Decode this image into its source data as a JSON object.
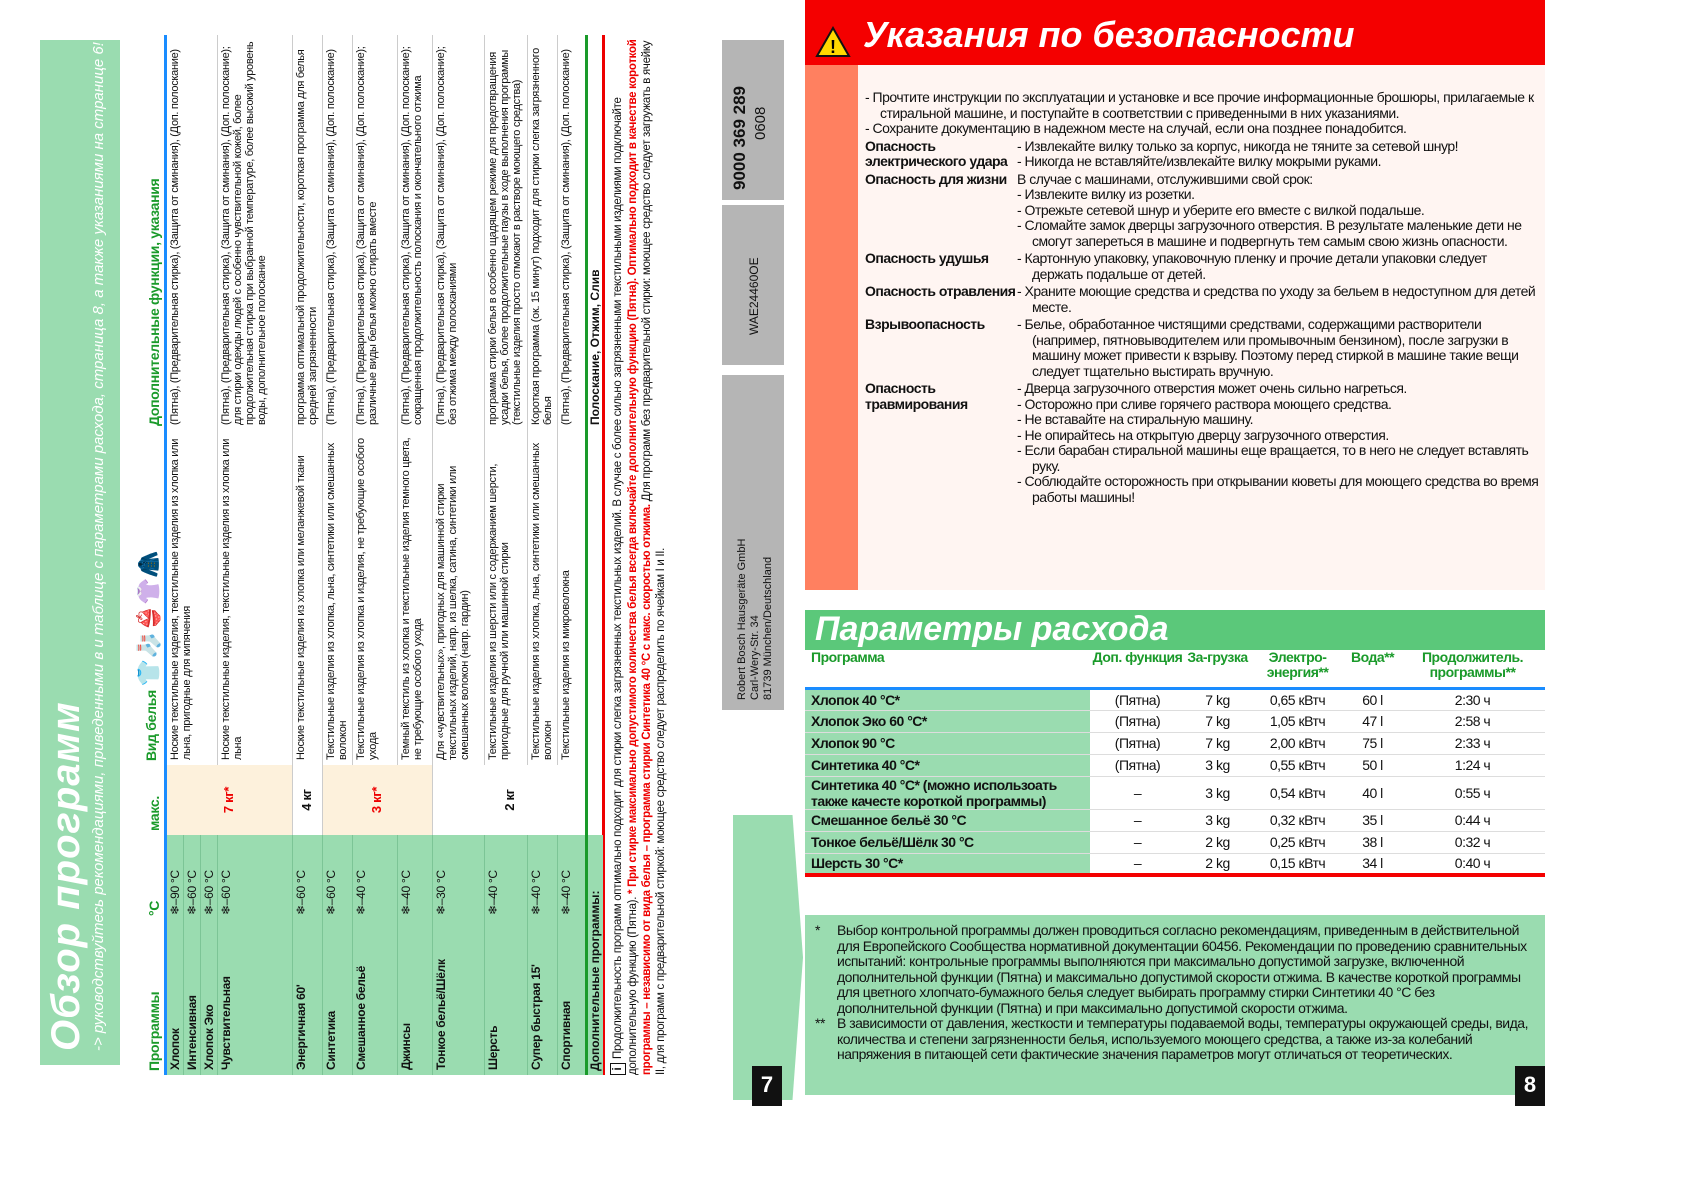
{
  "left_page": {
    "title": "Обзор программ",
    "subtitle": "-> руководствуйтесь рекомендациями, приведенными в и таблице с параметрами расхода, страница 8, а также указаниями на странице 6!",
    "headers": {
      "program": "Программы",
      "temp": "°C",
      "max": "макс.",
      "type": "Вид белья",
      "extra": "Дополнительные функции, указания"
    },
    "laundry_icons": [
      "shirt-icon",
      "sock-icon",
      "underwear-icon",
      "tshirt-icon",
      "suit-icon"
    ],
    "max_loads": {
      "a": "7 кг*",
      "b": "4 кг",
      "c": "3 кг*",
      "d": "2 кг"
    },
    "programs": [
      {
        "name": "Хлопок",
        "temp": "❄–90 °C"
      },
      {
        "name": "Интенсивная",
        "temp": "❄–60 °C"
      },
      {
        "name": "Хлопок Эко",
        "temp": "❄–60 °C"
      },
      {
        "name": "Чувствительная",
        "temp": "❄–60 °C"
      },
      {
        "name": "Энергичная 60'",
        "temp": "❄–60 °C"
      },
      {
        "name": "Синтетика",
        "temp": "❄–60 °C"
      },
      {
        "name": "Смешанное бельё",
        "temp": "❄–40 °C"
      },
      {
        "name": "Джинсы",
        "temp": "❄–40 °C"
      },
      {
        "name": "Тонкое бельё/Шёлк",
        "temp": "❄–30 °C"
      },
      {
        "name": "Шерсть",
        "temp": "❄–40 °C"
      },
      {
        "name": "Супер быстрая 15'",
        "temp": "❄–40 °C"
      },
      {
        "name": "Спортивная",
        "temp": "❄–40 °C"
      }
    ],
    "descriptions": [
      "Ноские текстильные изделия, текстильные изделия из хлопка или льна, пригодные для кипячения",
      "Ноские текстильные изделия, текстильные изделия из хлопка или льна",
      "Ноские текстильные изделия из хлопка или меланжевой ткани",
      "Текстильные изделия из хлопка, льна, синтетики или смешанных волокон",
      "Текстильные изделия из хлопка и изделия, не требующие особого ухода",
      "Темный текстиль из хлопка и текстильные изделия темного цвета, не требующие особого ухода",
      "Для «чувствительных», пригодных для машинной стирки текстильных изделий, напр. из шелка, сатина, синтетики или смешанных волокон (напр. гардин)",
      "Текстильные изделия из шерсти или с содержанием шерсти, пригодные для ручной или машинной стирки",
      "Текстильные изделия из хлопка, льна, синтетики или смешанных волокон",
      "Текстильные изделия из микроволокна"
    ],
    "extras": [
      "(Пятна), (Предварительная стирка), (Защита от сминания), (Доп. полоскание)",
      "(Пятна), (Предварительная стирка), (Защита от сминания), (Доп. полоскание); для стирки одежды людей с особенно чувствительной кожей, более продолжительная стирка при выбранной температуре, более высокий уровень воды, дополнительное полоскание",
      "программа оптимальной продолжительности, короткая программа для белья средней загрязненности",
      "(Пятна), (Предварительная стирка), (Защита от сминания), (Доп. полоскание)",
      "(Пятна), (Предварительная стирка), (Защита от сминания), (Доп. полоскание); различные виды белья можно стирать вместе",
      "(Пятна), (Предварительная стирка), (Защита от сминания), (Доп. полоскание); сокращенная продолжительность полоскания и окончательного отжима",
      "(Пятна), (Предварительная стирка), (Защита от сминания), (Доп. полоскание); без отжима между полосканиями",
      "программа стирки белья в особенно щадящем режиме для предотвращения усадки белья, более продолжительные паузы в ходе выполнения программы (текстильные изделия просто отмокают в растворе моющего средства)",
      "Короткая программа (ок. 15 минут) подходит для стирки слегка загрязненного белья",
      "(Пятна), (Предварительная стирка), (Защита от сминания), (Доп. полоскание)"
    ],
    "additional_label": "Дополнительные программы:",
    "additional_items": "Полоскание, Отжим, Слив",
    "note_1": "Продолжительность программ оптимально подходит для стирки слегка загрязненных текстильных изделий. В случае с более сильно загрязненными текстильными изделиями подключайте дополнительную функцию (Пятна).",
    "note_red": "* При стирке максимально допустимого количества белья всегда включайте дополнительную функцию (Пятна). Оптимально подходит в качестве короткой программы – независимо от вида белья – программа стирки Синтетика 40 °C с макс. скоростью отжима.",
    "note_2": "Для программ без предварительной стирки: моющее средство следует загружать в ячейку II, для программ с предварительной стиркой: моющее средство следует распределить по ячейкам I и II.",
    "page_number": "7"
  },
  "spine": {
    "code": "9000 369 289",
    "date": "0608",
    "model": "WAE24460OE",
    "company": "Robert Bosch Hausgeräte GmbH",
    "street": "Carl-Wery-Str. 34",
    "city": "81739 München/Deutschland"
  },
  "right_page": {
    "safety_title": "Указания по безопасности",
    "intro": [
      "- Прочтите инструкции по эксплуатации и установке и все прочие информационные брошюры, прилагаемые к стиральной машине, и поступайте в соответствии с приведенными в них указаниями.",
      "- Сохраните документацию в надежном месте на случай, если она позднее понадобится."
    ],
    "sections": [
      {
        "label": "Опасность электрического удара",
        "lead": "",
        "items": [
          "- Извлекайте вилку только за корпус, никогда не тяните за сетевой шнур!",
          "- Никогда не вставляйте/извлекайте вилку мокрыми руками."
        ]
      },
      {
        "label": "Опасность для жизни",
        "lead": "В случае с машинами, отслужившими свой срок:",
        "items": [
          "- Извлеките вилку из розетки.",
          "- Отрежьте сетевой шнур и уберите его вместе с вилкой подальше.",
          "- Сломайте замок дверцы загрузочного отверстия. В результате маленькие дети не смогут запереться в машине и подвергнуть тем самым свою жизнь опасности."
        ]
      },
      {
        "label": "Опасность удушья",
        "lead": "",
        "items": [
          "- Картонную упаковку, упаковочную пленку и прочие детали упаковки следует держать подальше от детей."
        ]
      },
      {
        "label": "Опасность отравления",
        "lead": "",
        "items": [
          "- Храните моющие средства и средства по уходу за бельем в недоступном для детей месте."
        ]
      },
      {
        "label": "Взрывоопасность",
        "lead": "",
        "items": [
          "- Белье, обработанное чистящими средствами, содержащими растворители (например, пятновыводителем или промывочным бензином), после загрузки в машину может привести к взрыву. Поэтому перед стиркой в машине такие вещи следует тщательно выстирать вручную."
        ]
      },
      {
        "label": "Опасность травмирования",
        "lead": "",
        "items": [
          "- Дверца загрузочного отверстия может очень сильно нагреться.",
          "- Осторожно при сливе горячего раствора моющего средства.",
          "- Не вставайте на стиральную машину.",
          "- Не опирайтесь на открытую дверцу загрузочного отверстия.",
          "- Если барабан стиральной машины еще вращается, то в него не следует вставлять руку.",
          "- Соблюдайте осторожность при открывании кюветы для моющего средства во время работы машины!"
        ]
      }
    ],
    "consumption_title": "Параметры расхода",
    "table_headers": [
      "Программа",
      "Доп. функция",
      "За-грузка",
      "Электро-энергия**",
      "Вода**",
      "Продолжитель. программы**"
    ],
    "rows": [
      {
        "program": "Хлопок 40 °C*",
        "extra": "(Пятна)",
        "load": "7 kg",
        "energy": "0,65 кВтч",
        "water": "60 l",
        "duration": "2:30 ч"
      },
      {
        "program": "Хлопок Эко 60 °C*",
        "extra": "(Пятна)",
        "load": "7 kg",
        "energy": "1,05 кВтч",
        "water": "47 l",
        "duration": "2:58 ч"
      },
      {
        "program": "Хлопок 90 °C",
        "extra": "(Пятна)",
        "load": "7 kg",
        "energy": "2,00 кВтч",
        "water": "75 l",
        "duration": "2:33 ч"
      },
      {
        "program": "Синтетика 40 °C*",
        "extra": "(Пятна)",
        "load": "3 kg",
        "energy": "0,55 кВтч",
        "water": "50 l",
        "duration": "1:24 ч"
      },
      {
        "program": "Синтетика 40 °C* (можно использоать также качесте короткой программы)",
        "extra": "–",
        "load": "3 kg",
        "energy": "0,54 кВтч",
        "water": "40 l",
        "duration": "0:55 ч"
      },
      {
        "program": "Смешанное бельё 30 °C",
        "extra": "–",
        "load": "3 kg",
        "energy": "0,32 кВтч",
        "water": "35 l",
        "duration": "0:44 ч"
      },
      {
        "program": "Тонкое бельё/Шёлк 30 °C",
        "extra": "–",
        "load": "2 kg",
        "energy": "0,25 кВтч",
        "water": "38 l",
        "duration": "0:32 ч"
      },
      {
        "program": "Шерсть 30 °C*",
        "extra": "–",
        "load": "2 kg",
        "energy": "0,15 кВтч",
        "water": "34 l",
        "duration": "0:40 ч"
      }
    ],
    "footnotes": [
      {
        "mark": "*",
        "text": "Выбор контрольной программы должен проводиться согласно рекомендациям, приведенным в действительной для Европейского Сообщества нормативной документации 60456. Рекомендации по проведению сравнительных испытаний: контрольные программы выполняются при максимально допустимой загрузке, включенной дополнительной функции (Пятна) и максимально допустимой скорости отжима. В качестве короткой программы для цветного хлопчато-бумажного белья следует выбирать программу стирки Синтетики 40 °C без дополнительной функции (Пятна) и при максимально допустимой скорости отжима."
      },
      {
        "mark": "**",
        "text": "В зависимости от давления, жесткости и температуры подаваемой воды, температуры окружающей среды, вида, количества и степени загрязненности белья, используемого моющего средства, а также из-за колебаний напряжения в питающей сети фактические значения параметров могут отличаться от теоретических."
      }
    ],
    "page_number": "8"
  },
  "colors": {
    "green": "#9adcb0",
    "title_green": "#5bc87a",
    "red": "#f40000",
    "salmon": "#ff8060",
    "blue": "#1a8cff",
    "beige": "#fdf1dc"
  }
}
